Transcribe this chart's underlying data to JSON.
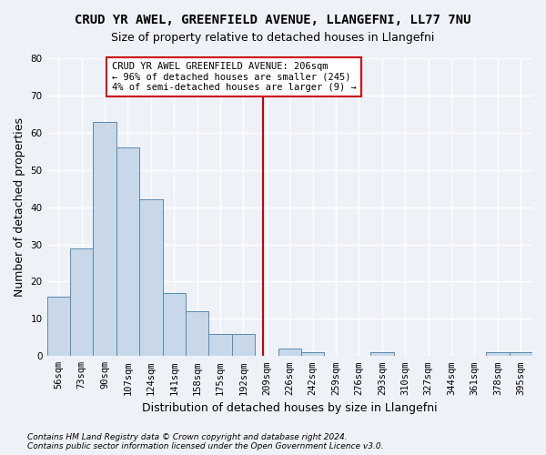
{
  "title1": "CRUD YR AWEL, GREENFIELD AVENUE, LLANGEFNI, LL77 7NU",
  "title2": "Size of property relative to detached houses in Llangefni",
  "xlabel": "Distribution of detached houses by size in Llangefni",
  "ylabel": "Number of detached properties",
  "footer": "Contains HM Land Registry data © Crown copyright and database right 2024.\nContains public sector information licensed under the Open Government Licence v3.0.",
  "bins": [
    "56sqm",
    "73sqm",
    "90sqm",
    "107sqm",
    "124sqm",
    "141sqm",
    "158sqm",
    "175sqm",
    "192sqm",
    "209sqm",
    "226sqm",
    "242sqm",
    "259sqm",
    "276sqm",
    "293sqm",
    "310sqm",
    "327sqm",
    "344sqm",
    "361sqm",
    "378sqm",
    "395sqm"
  ],
  "values": [
    16,
    29,
    63,
    56,
    42,
    17,
    12,
    6,
    6,
    0,
    2,
    1,
    0,
    0,
    1,
    0,
    0,
    0,
    0,
    1,
    1
  ],
  "bar_color": "#c8d8e8",
  "bar_edge_color": "#5a8ab0",
  "vline_x": 8.85,
  "vline_color": "#cc0000",
  "annotation_text": "CRUD YR AWEL GREENFIELD AVENUE: 206sqm\n← 96% of detached houses are smaller (245)\n4% of semi-detached houses are larger (9) →",
  "annotation_box_color": "#ffffff",
  "annotation_box_edge": "#cc0000",
  "bg_color": "#eef2f8",
  "plot_bg_color": "#eef2f8",
  "grid_color": "#ffffff",
  "ylim": [
    0,
    80
  ],
  "yticks": [
    0,
    10,
    20,
    30,
    40,
    50,
    60,
    70,
    80
  ],
  "title1_fontsize": 10,
  "title2_fontsize": 9,
  "xlabel_fontsize": 9,
  "ylabel_fontsize": 9,
  "tick_fontsize": 7.5,
  "annotation_fontsize": 7.5,
  "footer_fontsize": 6.5
}
